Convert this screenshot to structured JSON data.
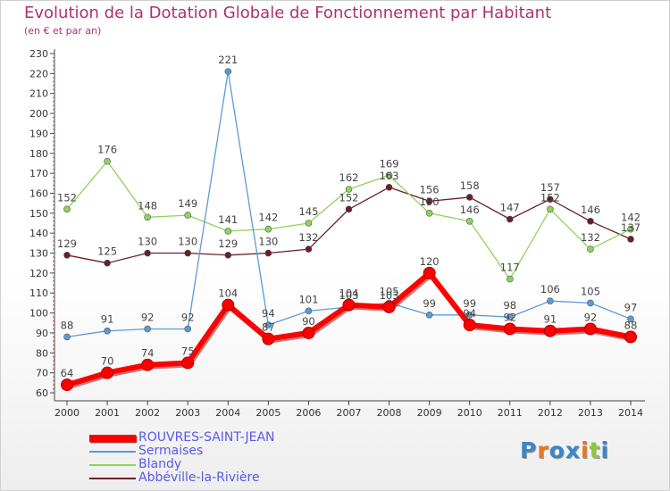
{
  "header": {
    "title": "Evolution de la Dotation Globale de Fonctionnement par Habitant",
    "subtitle": "(en € et par an)"
  },
  "branding": {
    "logo_text": "Proxiti",
    "logo_colors": [
      "#3a86c8",
      "#e87722",
      "#3a86c8",
      "#3a86c8",
      "#e87722",
      "#8dc63f",
      "#3a86c8"
    ]
  },
  "chart_data": {
    "type": "line",
    "title": "Evolution de la Dotation Globale de Fonctionnement par Habitant",
    "subtitle": "(en € et par an)",
    "xlabel": "",
    "ylabel": "",
    "ylim": [
      60,
      230
    ],
    "yticks": [
      60,
      70,
      80,
      90,
      100,
      110,
      120,
      130,
      140,
      150,
      160,
      170,
      180,
      190,
      200,
      210,
      220,
      230
    ],
    "grid": false,
    "legend": "bottom-left",
    "x": [
      "2000",
      "2001",
      "2002",
      "2003",
      "2004",
      "2005",
      "2006",
      "2007",
      "2008",
      "2009",
      "2010",
      "2011",
      "2012",
      "2013",
      "2014"
    ],
    "series": [
      {
        "name": "Abbéville-la-Rivière",
        "color": "#6b1e28",
        "values": [
          129,
          125,
          130,
          130,
          129,
          130,
          132,
          152,
          163,
          156,
          158,
          147,
          157,
          146,
          137
        ]
      },
      {
        "name": "Blandy",
        "color": "#8fd35a",
        "values": [
          152,
          176,
          148,
          149,
          141,
          142,
          145,
          162,
          169,
          150,
          146,
          117,
          152,
          132,
          142
        ]
      },
      {
        "name": "Sermaises",
        "color": "#5b9bd5",
        "values": [
          88,
          91,
          92,
          92,
          221,
          94,
          101,
          103,
          105,
          99,
          99,
          98,
          106,
          105,
          97
        ]
      },
      {
        "name": "ROUVRES-SAINT-JEAN",
        "color": "#ff0000",
        "values": [
          64,
          70,
          74,
          75,
          104,
          87,
          90,
          104,
          103,
          120,
          94,
          92,
          91,
          92,
          88
        ]
      }
    ]
  },
  "legend_items": [
    {
      "label": "ROUVRES-SAINT-JEAN",
      "color": "#ff0000"
    },
    {
      "label": "Sermaises",
      "color": "#5b9bd5"
    },
    {
      "label": "Blandy",
      "color": "#8fd35a"
    },
    {
      "label": "Abbéville-la-Rivière",
      "color": "#6b1e28"
    }
  ]
}
